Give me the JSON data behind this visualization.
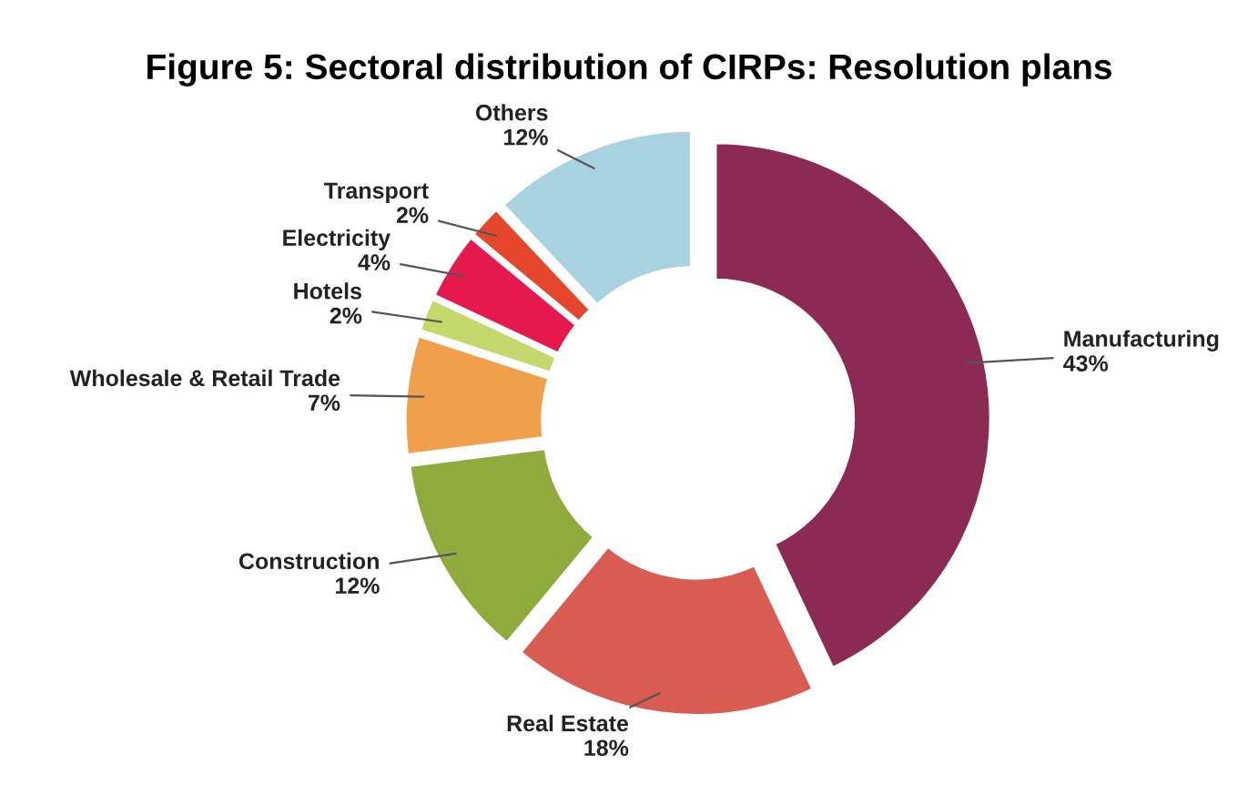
{
  "chart_data": {
    "type": "donut",
    "title": "Figure 5: Sectoral distribution of CIRPs: Resolution plans",
    "categories": [
      "Manufacturing",
      "Real Estate",
      "Construction",
      "Wholesale & Retail Trade",
      "Hotels",
      "Electricity",
      "Transport",
      "Others"
    ],
    "values": [
      43,
      18,
      12,
      7,
      2,
      4,
      2,
      12
    ],
    "value_labels": [
      "43%",
      "18%",
      "12%",
      "7%",
      "2%",
      "4%",
      "2%",
      "12%"
    ],
    "colors": [
      "#8b2a55",
      "#d95c52",
      "#8fab3e",
      "#f0a04b",
      "#c5d86c",
      "#e6194f",
      "#e5472c",
      "#a8d2e0"
    ]
  }
}
